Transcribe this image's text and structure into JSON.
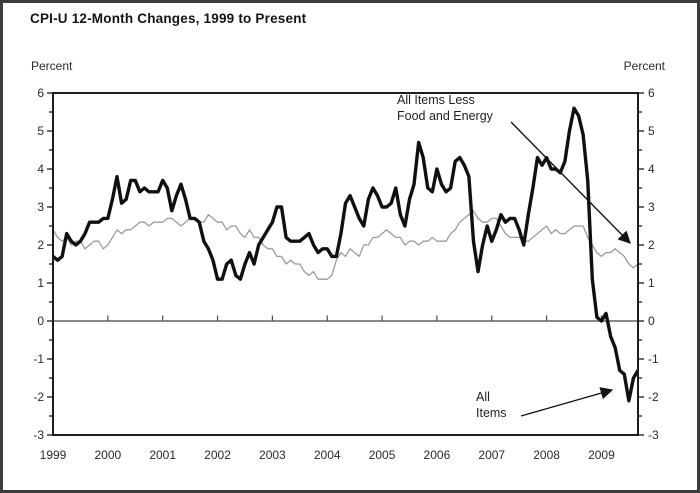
{
  "header": {
    "title": "CPI-U 12-Month Changes, 1999 to Present"
  },
  "axis": {
    "left_unit_label": "Percent",
    "right_unit_label": "Percent",
    "y_tick_labels": [
      6,
      5,
      4,
      3,
      2,
      1,
      0,
      -1,
      -2,
      -3
    ],
    "y_minor_step": 0.5
  },
  "annotations": [
    {
      "id": "core",
      "lines": [
        "All Items Less",
        "Food and Energy"
      ]
    },
    {
      "id": "all-items",
      "lines": [
        "All",
        "Items"
      ]
    }
  ],
  "chart_data": {
    "type": "line",
    "title": "CPI-U 12-Month Changes, 1999 to Present",
    "ylabel": "Percent",
    "ylim": [
      -3,
      6
    ],
    "x_start": "1999-01",
    "x_end": "2009-09",
    "x_frequency": "monthly",
    "grid": false,
    "zero_line": true,
    "legend_position": "annotated-arrows",
    "year_labels": [
      "1999",
      "2000",
      "2001",
      "2002",
      "2003",
      "2004",
      "2005",
      "2006",
      "2007",
      "2008",
      "2009"
    ],
    "series": [
      {
        "name": "All Items",
        "style": "thick",
        "color": "#101010",
        "stroke_width": 3.4,
        "values": [
          1.7,
          1.6,
          1.7,
          2.3,
          2.1,
          2.0,
          2.1,
          2.3,
          2.6,
          2.6,
          2.6,
          2.7,
          2.7,
          3.2,
          3.8,
          3.1,
          3.2,
          3.7,
          3.7,
          3.4,
          3.5,
          3.4,
          3.4,
          3.4,
          3.7,
          3.5,
          2.9,
          3.3,
          3.6,
          3.2,
          2.7,
          2.7,
          2.6,
          2.1,
          1.9,
          1.6,
          1.1,
          1.1,
          1.5,
          1.6,
          1.2,
          1.1,
          1.5,
          1.8,
          1.5,
          2.0,
          2.2,
          2.4,
          2.6,
          3.0,
          3.0,
          2.2,
          2.1,
          2.1,
          2.1,
          2.2,
          2.3,
          2.0,
          1.8,
          1.9,
          1.9,
          1.7,
          1.7,
          2.3,
          3.1,
          3.3,
          3.0,
          2.7,
          2.5,
          3.2,
          3.5,
          3.3,
          3.0,
          3.0,
          3.1,
          3.5,
          2.8,
          2.5,
          3.2,
          3.6,
          4.7,
          4.3,
          3.5,
          3.4,
          4.0,
          3.6,
          3.4,
          3.5,
          4.2,
          4.3,
          4.1,
          3.8,
          2.1,
          1.3,
          2.0,
          2.5,
          2.1,
          2.4,
          2.8,
          2.6,
          2.7,
          2.7,
          2.4,
          2.0,
          2.8,
          3.5,
          4.3,
          4.1,
          4.3,
          4.0,
          4.0,
          3.9,
          4.2,
          5.0,
          5.6,
          5.4,
          4.9,
          3.7,
          1.1,
          0.1,
          0.0,
          0.2,
          -0.4,
          -0.7,
          -1.3,
          -1.4,
          -2.1,
          -1.5,
          -1.3
        ]
      },
      {
        "name": "All Items Less Food and Energy",
        "style": "thin",
        "color": "#9b9b9b",
        "stroke_width": 1.3,
        "values": [
          2.4,
          2.2,
          2.1,
          2.2,
          2.0,
          2.1,
          2.1,
          1.9,
          2.0,
          2.1,
          2.1,
          1.9,
          2.0,
          2.2,
          2.4,
          2.3,
          2.4,
          2.4,
          2.5,
          2.6,
          2.6,
          2.5,
          2.6,
          2.6,
          2.6,
          2.7,
          2.7,
          2.6,
          2.5,
          2.6,
          2.7,
          2.7,
          2.6,
          2.6,
          2.8,
          2.7,
          2.6,
          2.6,
          2.4,
          2.5,
          2.5,
          2.3,
          2.2,
          2.4,
          2.2,
          2.2,
          2.0,
          1.9,
          1.9,
          1.7,
          1.7,
          1.5,
          1.6,
          1.5,
          1.5,
          1.3,
          1.2,
          1.3,
          1.1,
          1.1,
          1.1,
          1.2,
          1.6,
          1.8,
          1.7,
          1.9,
          1.8,
          1.7,
          2.0,
          2.0,
          2.2,
          2.2,
          2.3,
          2.4,
          2.3,
          2.2,
          2.2,
          2.0,
          2.1,
          2.1,
          2.0,
          2.1,
          2.1,
          2.2,
          2.1,
          2.1,
          2.1,
          2.3,
          2.4,
          2.6,
          2.7,
          2.8,
          2.9,
          2.7,
          2.6,
          2.6,
          2.7,
          2.7,
          2.5,
          2.3,
          2.2,
          2.2,
          2.2,
          2.1,
          2.1,
          2.2,
          2.3,
          2.4,
          2.5,
          2.3,
          2.4,
          2.3,
          2.3,
          2.4,
          2.5,
          2.5,
          2.5,
          2.2,
          2.0,
          1.8,
          1.7,
          1.8,
          1.8,
          1.9,
          1.8,
          1.7,
          1.5,
          1.4,
          1.5
        ]
      }
    ]
  }
}
